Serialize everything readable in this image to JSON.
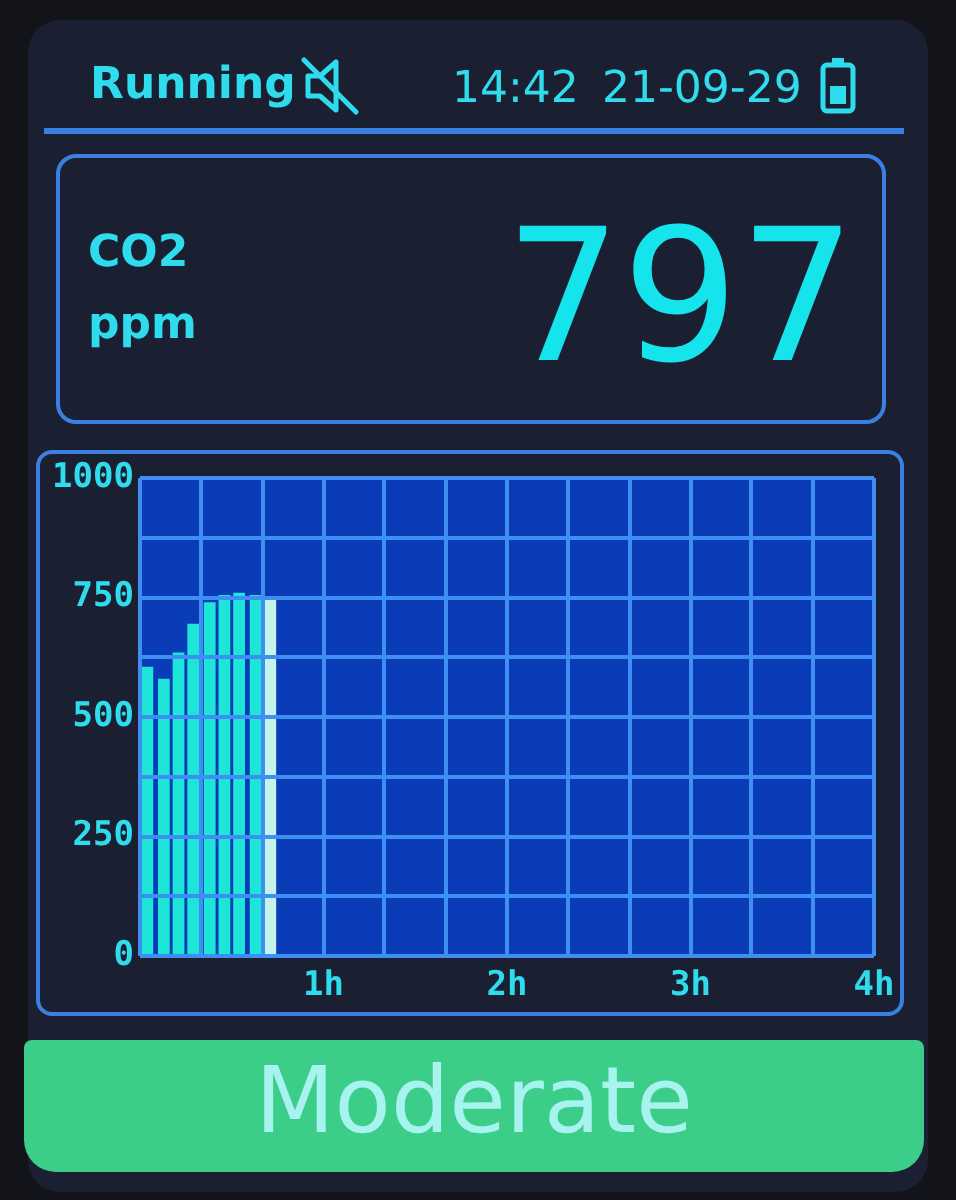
{
  "chart_data": {
    "type": "bar",
    "annotations": [
      "Running",
      "14:42",
      "21-09-29",
      "CO2",
      "ppm",
      "797",
      "Moderate"
    ],
    "x": [
      0.04,
      0.13,
      0.21,
      0.29,
      0.38,
      0.46,
      0.54,
      0.63,
      0.71
    ],
    "values": [
      605,
      580,
      635,
      695,
      740,
      755,
      760,
      755,
      750
    ],
    "colors": [
      "#1de6d8",
      "#1de6d8",
      "#1de6d8",
      "#1de6d8",
      "#1de6d8",
      "#1de6d8",
      "#1de6d8",
      "#1de6d8",
      "#c4f4ec"
    ],
    "xlim": [
      0,
      4
    ],
    "xticks": [
      {
        "value": 0,
        "label": null
      },
      {
        "value": 0.33,
        "label": null
      },
      {
        "value": 0.67,
        "label": null
      },
      {
        "value": 1,
        "label": "1h"
      },
      {
        "value": 1.33,
        "label": null
      },
      {
        "value": 1.67,
        "label": null
      },
      {
        "value": 2,
        "label": "2h"
      },
      {
        "value": 2.33,
        "label": null
      },
      {
        "value": 2.67,
        "label": null
      },
      {
        "value": 3,
        "label": "3h"
      },
      {
        "value": 3.33,
        "label": null
      },
      {
        "value": 3.67,
        "label": null
      },
      {
        "value": 4,
        "label": "4h"
      }
    ],
    "ylim": [
      0,
      1000
    ],
    "yticks": [
      0,
      {
        "value": 125,
        "label": null
      },
      250,
      {
        "value": 375,
        "label": null
      },
      500,
      {
        "value": 625,
        "label": null
      },
      750,
      {
        "value": 875,
        "label": null
      },
      1000
    ],
    "grid": true
  }
}
